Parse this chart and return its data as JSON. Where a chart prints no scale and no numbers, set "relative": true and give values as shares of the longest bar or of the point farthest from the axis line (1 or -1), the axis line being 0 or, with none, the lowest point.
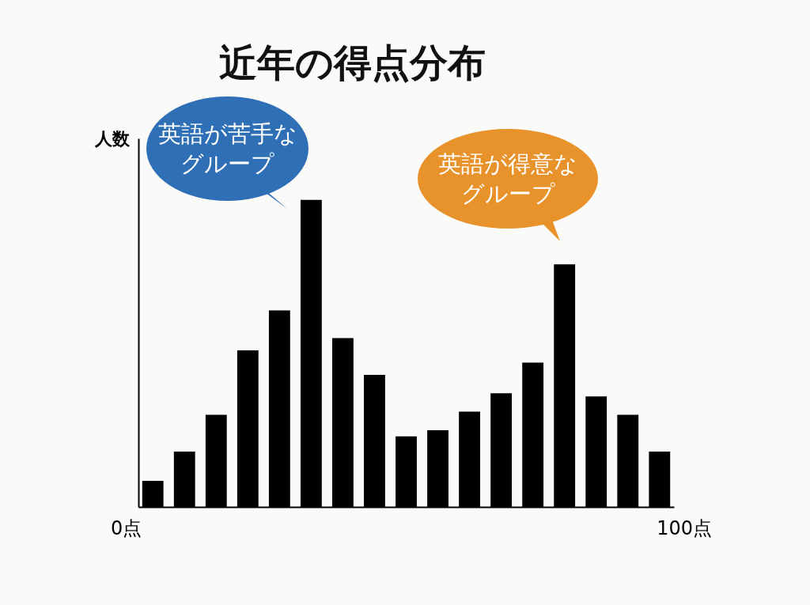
{
  "chart_data": {
    "type": "bar",
    "title": "近年の得点分布",
    "ylabel": "人数",
    "relative": true,
    "categories": [
      null,
      null,
      null,
      null,
      null,
      null,
      null,
      null,
      null,
      null,
      null,
      null,
      null,
      null,
      null,
      null,
      null
    ],
    "values": [
      0.085,
      0.18,
      0.3,
      0.51,
      0.64,
      1,
      0.55,
      0.43,
      0.23,
      0.25,
      0.31,
      0.37,
      0.47,
      0.79,
      0.36,
      0.3,
      0.18
    ],
    "color": "#000000",
    "annotations": [
      "英語が苦手なグループ",
      "英語が得意なグループ",
      "0点",
      "100点"
    ]
  }
}
